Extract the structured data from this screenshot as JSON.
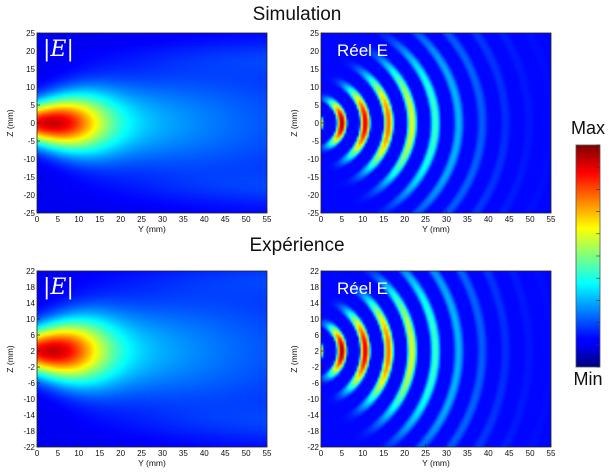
{
  "titles": {
    "top": "Simulation",
    "bottom": "Expérience"
  },
  "colorbar": {
    "max_label": "Max",
    "min_label": "Min"
  },
  "chart_data": [
    {
      "type": "heatmap",
      "label": "|E|",
      "label_style": "math",
      "xlabel": "Y (mm)",
      "ylabel": "Z (mm)",
      "xlim": [
        0,
        55
      ],
      "ylim": [
        -25,
        25
      ],
      "xticks": [
        "0",
        "5",
        "10",
        "15",
        "20",
        "25",
        "30",
        "35",
        "40",
        "45",
        "50",
        "55"
      ],
      "yticks": [
        "25",
        "20",
        "15",
        "10",
        "5",
        "0",
        "-5",
        "-10",
        "-15",
        "-20",
        "-25"
      ],
      "pattern": "magnitude",
      "peak_y": 5,
      "peak_z": 0
    },
    {
      "type": "heatmap",
      "label": "Réel E",
      "label_style": "text",
      "xlabel": "Y (mm)",
      "ylabel": "Z (mm)",
      "xlim": [
        0,
        55
      ],
      "ylim": [
        -25,
        25
      ],
      "xticks": [
        "0",
        "5",
        "10",
        "15",
        "20",
        "25",
        "30",
        "35",
        "40",
        "45",
        "50",
        "55"
      ],
      "yticks": [
        "25",
        "20",
        "15",
        "10",
        "5",
        "0",
        "-5",
        "-10",
        "-15",
        "-20",
        "-25"
      ],
      "pattern": "real",
      "peak_y": 5,
      "peak_z": 0
    },
    {
      "type": "heatmap",
      "label": "|E|",
      "label_style": "math",
      "xlabel": "Y (mm)",
      "ylabel": "Z (mm)",
      "xlim": [
        0,
        55
      ],
      "ylim": [
        -22,
        22
      ],
      "xticks": [
        "0",
        "5",
        "10",
        "15",
        "20",
        "25",
        "30",
        "35",
        "40",
        "45",
        "50",
        "55"
      ],
      "yticks": [
        "22",
        "18",
        "14",
        "10",
        "6",
        "2",
        "-2",
        "-6",
        "-10",
        "-14",
        "-18",
        "-22"
      ],
      "pattern": "magnitude",
      "peak_y": 5,
      "peak_z": 2
    },
    {
      "type": "heatmap",
      "label": "Réel E",
      "label_style": "text",
      "xlabel": "Y (mm)",
      "ylabel": "Z (mm)",
      "xlim": [
        0,
        55
      ],
      "ylim": [
        -22,
        22
      ],
      "xticks": [
        "0",
        "5",
        "10",
        "15",
        "20",
        "25",
        "30",
        "35",
        "40",
        "45",
        "50",
        "55"
      ],
      "yticks": [
        "22",
        "18",
        "14",
        "10",
        "6",
        "2",
        "-2",
        "-6",
        "-10",
        "-14",
        "-18",
        "-22"
      ],
      "pattern": "real",
      "peak_y": 5,
      "peak_z": 2
    }
  ]
}
